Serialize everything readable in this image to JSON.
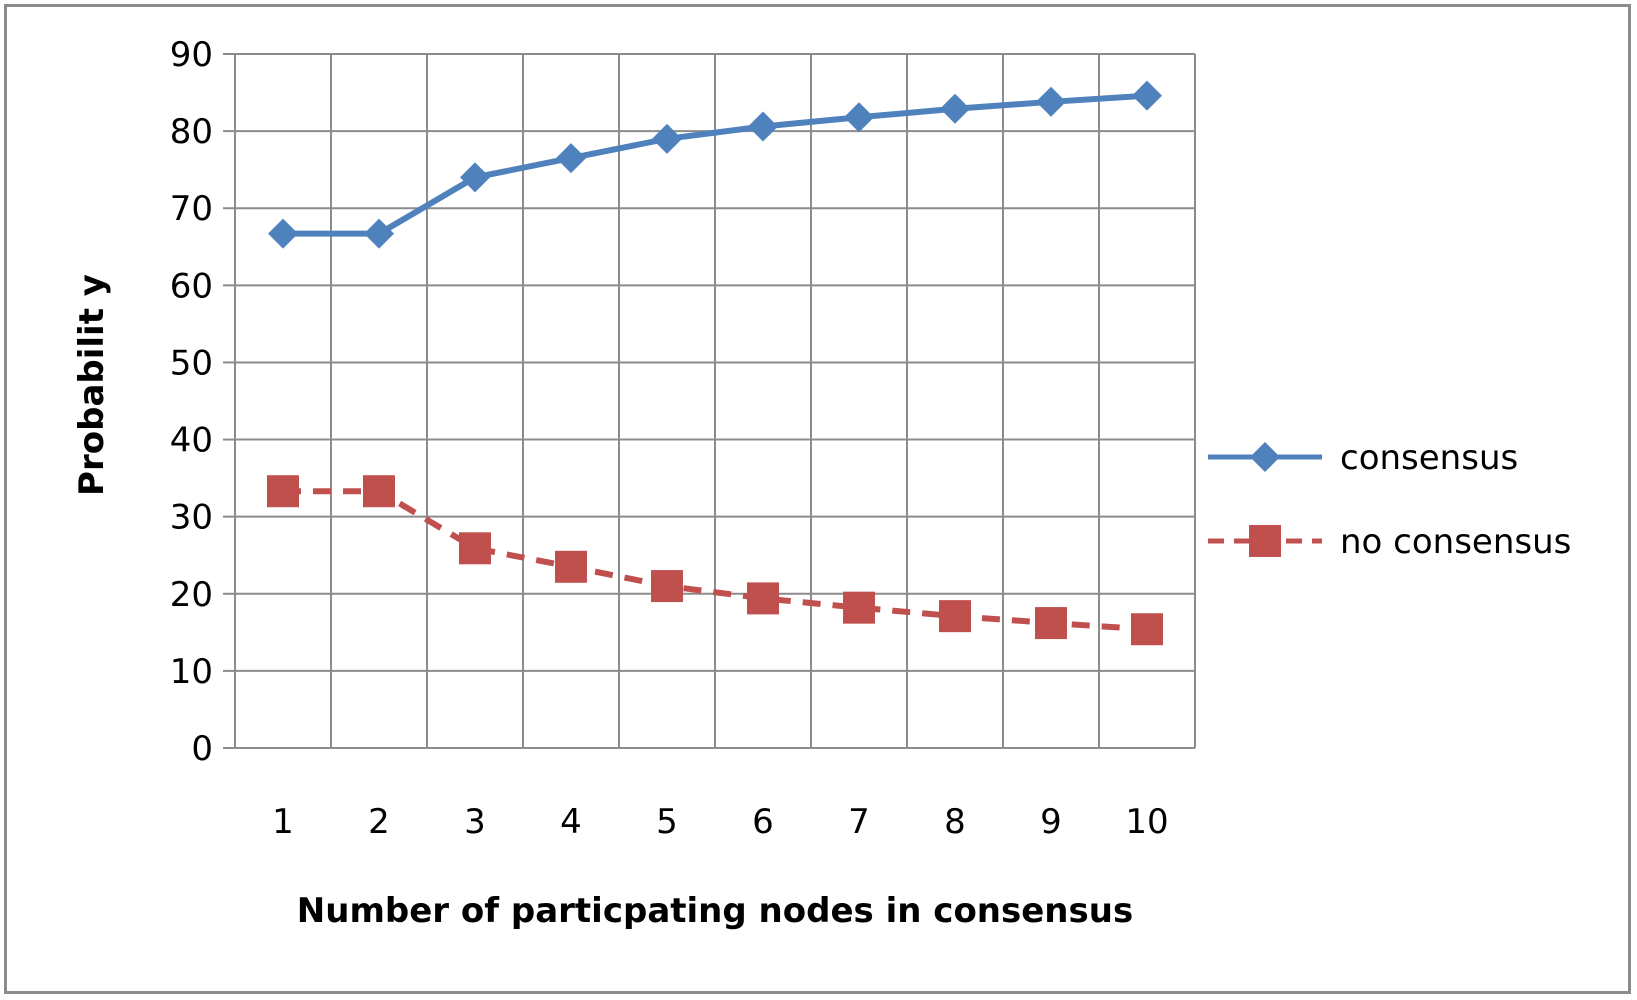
{
  "chart_data": {
    "type": "line",
    "title": "",
    "xlabel": "Number of particpating  nodes in consensus",
    "ylabel": "Probabilit y",
    "categories": [
      "1",
      "2",
      "3",
      "4",
      "5",
      "6",
      "7",
      "8",
      "9",
      "10"
    ],
    "yticks": [
      "0",
      "10",
      "20",
      "30",
      "40",
      "50",
      "60",
      "70",
      "80",
      "90"
    ],
    "ylim": [
      0,
      90
    ],
    "grid": true,
    "legend_position": "right",
    "series": [
      {
        "name": "consensus",
        "values": [
          66.7,
          66.7,
          74,
          76.5,
          79,
          80.6,
          81.8,
          82.9,
          83.8,
          84.6
        ],
        "color": "#4f81bd",
        "marker": "diamond",
        "line_style": "solid"
      },
      {
        "name": "no consensus",
        "values": [
          33.3,
          33.3,
          25.9,
          23.5,
          21,
          19.4,
          18.2,
          17.1,
          16.2,
          15.4
        ],
        "color": "#c0504d",
        "marker": "square",
        "line_style": "dashed"
      }
    ]
  }
}
